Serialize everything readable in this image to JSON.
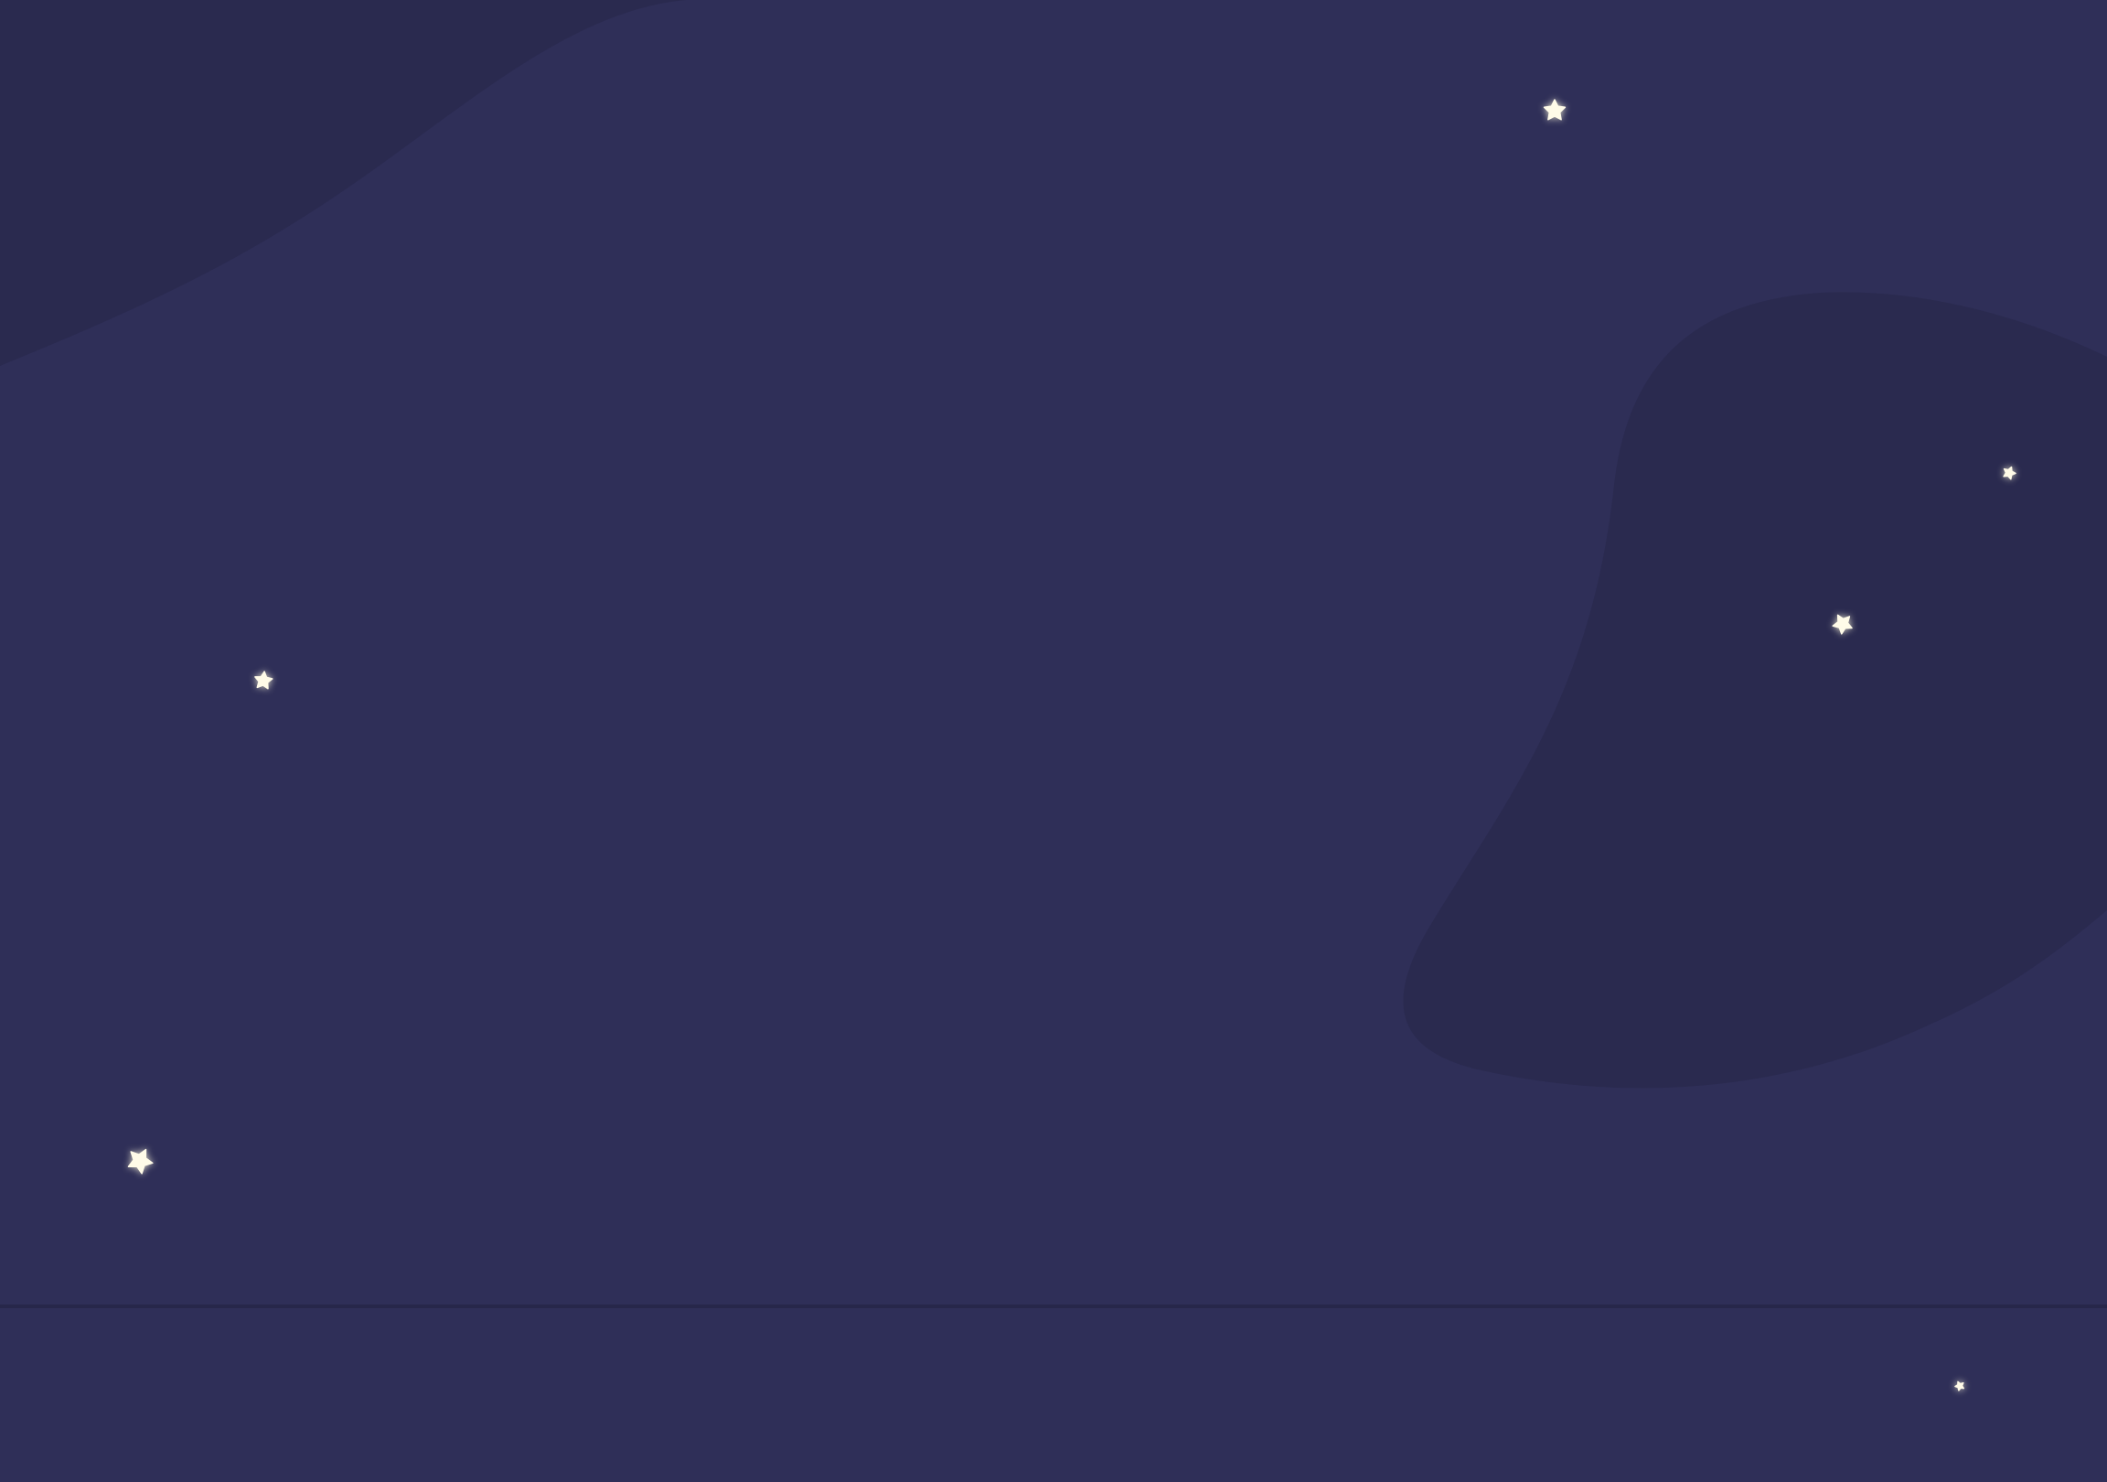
{
  "theme": {
    "background": "#2f2f58",
    "blob": "#2a2a4f",
    "divider": "#27274a",
    "star": "#fffbe8"
  },
  "scene": {
    "icons": {
      "blob_top_left": "blob-shape",
      "blob_right": "blob-shape",
      "star": "star-icon"
    }
  }
}
